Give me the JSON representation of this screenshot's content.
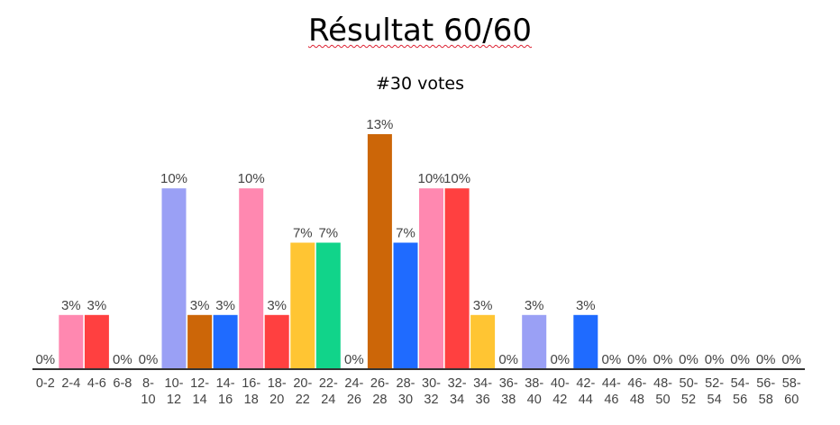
{
  "chart_data": {
    "type": "bar",
    "title": "Résultat 60/60",
    "subtitle": "#30 votes",
    "categories": [
      "0-2",
      "2-4",
      "4-6",
      "6-8",
      "8-10",
      "10-12",
      "12-14",
      "14-16",
      "16-18",
      "18-20",
      "20-22",
      "22-24",
      "24-26",
      "26-28",
      "28-30",
      "30-32",
      "32-34",
      "34-36",
      "36-38",
      "38-40",
      "40-42",
      "42-44",
      "44-46",
      "46-48",
      "48-50",
      "50-52",
      "52-54",
      "54-56",
      "56-58",
      "58-60"
    ],
    "category_lines": [
      [
        "0-2"
      ],
      [
        "2-4"
      ],
      [
        "4-6"
      ],
      [
        "6-8"
      ],
      [
        "8-",
        "10"
      ],
      [
        "10-",
        "12"
      ],
      [
        "12-",
        "14"
      ],
      [
        "14-",
        "16"
      ],
      [
        "16-",
        "18"
      ],
      [
        "18-",
        "20"
      ],
      [
        "20-",
        "22"
      ],
      [
        "22-",
        "24"
      ],
      [
        "24-",
        "26"
      ],
      [
        "26-",
        "28"
      ],
      [
        "28-",
        "30"
      ],
      [
        "30-",
        "32"
      ],
      [
        "32-",
        "34"
      ],
      [
        "34-",
        "36"
      ],
      [
        "36-",
        "38"
      ],
      [
        "38-",
        "40"
      ],
      [
        "40-",
        "42"
      ],
      [
        "42-",
        "44"
      ],
      [
        "44-",
        "46"
      ],
      [
        "46-",
        "48"
      ],
      [
        "48-",
        "50"
      ],
      [
        "50-",
        "52"
      ],
      [
        "52-",
        "54"
      ],
      [
        "54-",
        "56"
      ],
      [
        "56-",
        "58"
      ],
      [
        "58-",
        "60"
      ]
    ],
    "values": [
      0,
      3,
      3,
      0,
      0,
      10,
      3,
      3,
      10,
      3,
      7,
      7,
      0,
      13,
      7,
      10,
      10,
      3,
      0,
      3,
      0,
      3,
      0,
      0,
      0,
      0,
      0,
      0,
      0,
      0
    ],
    "labels": [
      "0%",
      "3%",
      "3%",
      "0%",
      "0%",
      "10%",
      "3%",
      "3%",
      "10%",
      "3%",
      "7%",
      "7%",
      "0%",
      "13%",
      "7%",
      "10%",
      "10%",
      "3%",
      "0%",
      "3%",
      "0%",
      "3%",
      "0%",
      "0%",
      "0%",
      "0%",
      "0%",
      "0%",
      "0%",
      "0%"
    ],
    "colors": [
      "#9aa0f5",
      "#ff88b0",
      "#ff4040",
      "#9aa0f5",
      "#9aa0f5",
      "#9aa0f5",
      "#cc6608",
      "#1f6bff",
      "#ff88b0",
      "#ff4040",
      "#ffc533",
      "#11d48a",
      "#9aa0f5",
      "#cc6608",
      "#1f6bff",
      "#ff88b0",
      "#ff4040",
      "#ffc533",
      "#9aa0f5",
      "#9aa0f5",
      "#9aa0f5",
      "#1f6bff",
      "#9aa0f5",
      "#9aa0f5",
      "#9aa0f5",
      "#9aa0f5",
      "#9aa0f5",
      "#9aa0f5",
      "#9aa0f5",
      "#9aa0f5"
    ],
    "ylim": [
      0,
      13
    ],
    "grid": false,
    "legend": "none"
  }
}
